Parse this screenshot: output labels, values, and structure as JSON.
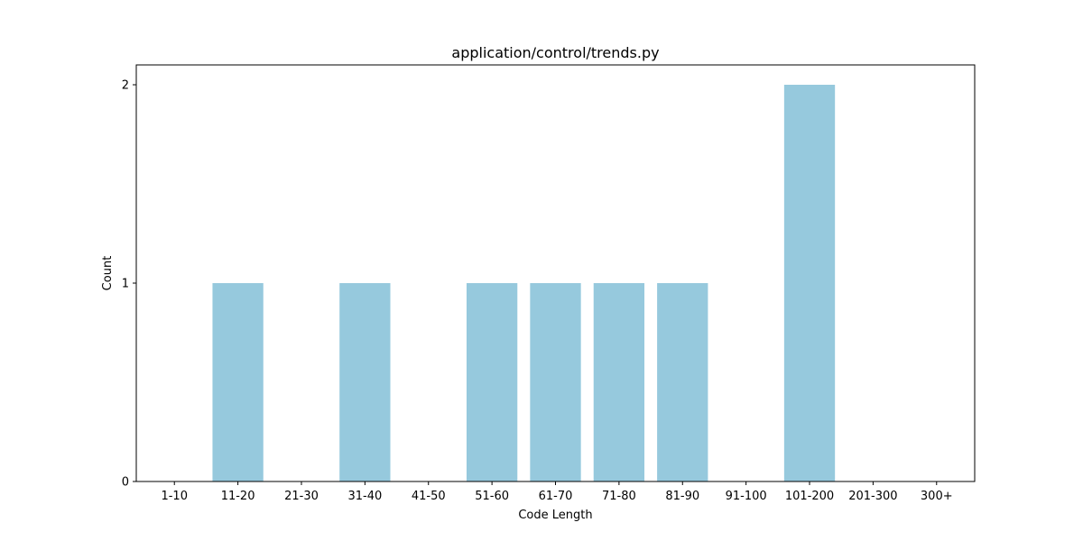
{
  "chart_data": {
    "type": "bar",
    "title": "application/control/trends.py",
    "xlabel": "Code Length",
    "ylabel": "Count",
    "categories": [
      "1-10",
      "11-20",
      "21-30",
      "31-40",
      "41-50",
      "51-60",
      "61-70",
      "71-80",
      "81-90",
      "91-100",
      "101-200",
      "201-300",
      "300+"
    ],
    "values": [
      0,
      1,
      0,
      1,
      0,
      1,
      1,
      1,
      1,
      0,
      2,
      0,
      0
    ],
    "yticks": [
      0,
      1,
      2
    ],
    "ylim": [
      0,
      2.1
    ],
    "grid": false,
    "legend": "none",
    "bar_color": "#96c9dd"
  }
}
